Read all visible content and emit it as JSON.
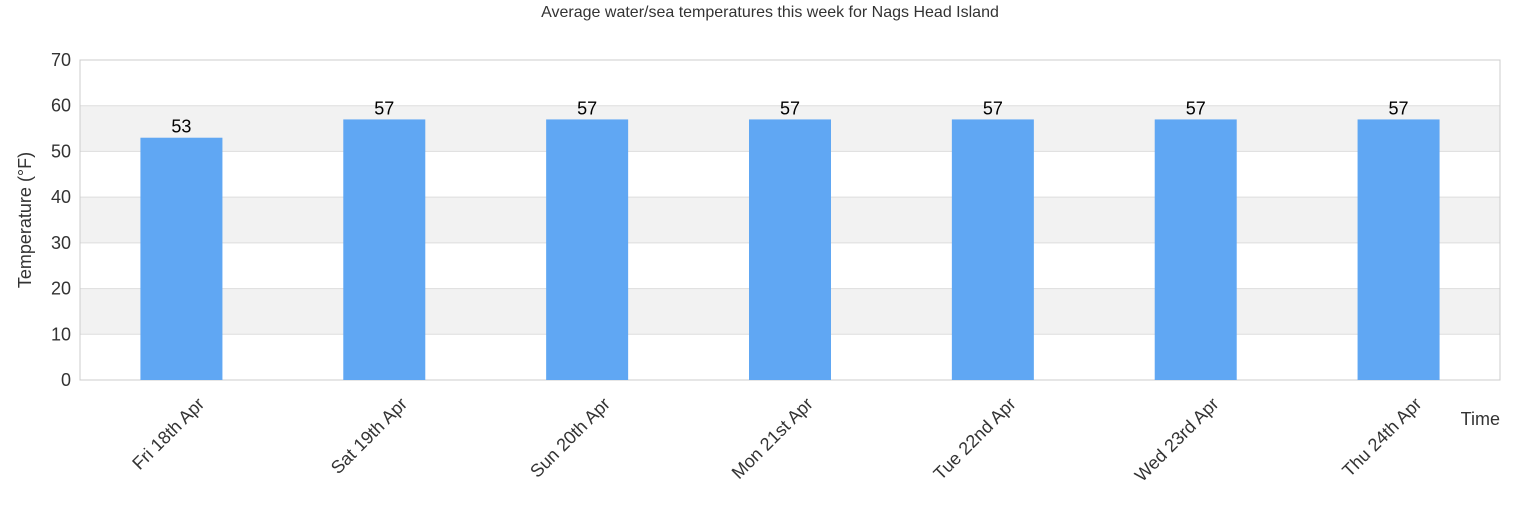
{
  "chart_data": {
    "type": "bar",
    "title": "Average water/sea temperatures this week for Nags Head Island",
    "xlabel": "Time",
    "ylabel": "Temperature (°F)",
    "categories": [
      "Fri 18th Apr",
      "Sat 19th Apr",
      "Sun 20th Apr",
      "Mon 21st Apr",
      "Tue 22nd Apr",
      "Wed 23rd Apr",
      "Thu 24th Apr"
    ],
    "values": [
      53,
      57,
      57,
      57,
      57,
      57,
      57
    ],
    "ylim": [
      0,
      70
    ],
    "yticks": [
      0,
      10,
      20,
      30,
      40,
      50,
      60,
      70
    ],
    "grid": "horizontal alternating bands",
    "legend": "none",
    "colors": {
      "bar": "#60a7f3",
      "band": "#f2f2f2",
      "gridline": "#dddddd",
      "axis": "#cccccc"
    }
  }
}
